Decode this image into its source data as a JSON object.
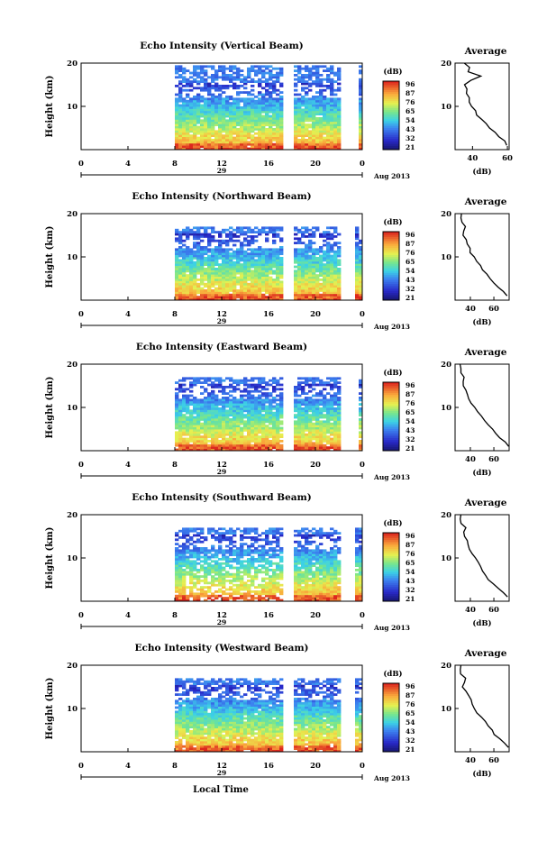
{
  "figure": {
    "xlabel": "Local Time",
    "date_label": "Aug 2013",
    "day_label": "29",
    "colorbar_unit": "(dB)",
    "colorbar_ticks": [
      "96",
      "87",
      "76",
      "65",
      "54",
      "43",
      "32",
      "21"
    ],
    "average_title": "Average",
    "average_xlabel": "(dB)",
    "height_label": "Height (km)"
  },
  "chart_data": [
    {
      "type": "heatmap",
      "title": "Echo Intensity (Vertical Beam)",
      "xlabel": "",
      "ylabel": "Height (km)",
      "xlim": [
        0,
        24
      ],
      "ylim": [
        0,
        20
      ],
      "x_ticks": [
        "0",
        "4",
        "8",
        "12",
        "16",
        "20",
        "0"
      ],
      "y_ticks": [
        "20",
        "10"
      ],
      "data_start_hour": 8,
      "gaps_hours": [
        17.6,
        18.0,
        22.4,
        23.0,
        23.5
      ],
      "colorbar_range_db": [
        21,
        96
      ],
      "average_profile": {
        "title": "Average",
        "xlabel": "(dB)",
        "x_ticks": [
          "40",
          "60"
        ],
        "xlim": [
          30,
          61
        ],
        "y_ticks": [
          "20",
          "10"
        ],
        "ylim": [
          0,
          20
        ],
        "heights_km": [
          1,
          2,
          3,
          4,
          5,
          6,
          7,
          8,
          9,
          10,
          11,
          12,
          13,
          14,
          15,
          16,
          17,
          18,
          19,
          20
        ],
        "values_db": [
          60,
          58,
          55,
          52,
          49,
          47,
          45,
          43,
          42,
          40,
          39,
          38,
          37,
          36,
          36,
          38,
          44,
          37,
          38,
          35
        ]
      }
    },
    {
      "type": "heatmap",
      "title": "Echo Intensity (Northward Beam)",
      "xlabel": "",
      "ylabel": "Height (km)",
      "xlim": [
        0,
        24
      ],
      "ylim": [
        0,
        20
      ],
      "x_ticks": [
        "0",
        "4",
        "8",
        "12",
        "16",
        "20",
        "0"
      ],
      "y_ticks": [
        "20",
        "10"
      ],
      "data_start_hour": 8,
      "gaps_hours": [
        17.6,
        18.0,
        22.4,
        23.0
      ],
      "colorbar_range_db": [
        21,
        96
      ],
      "average_profile": {
        "title": "Average",
        "xlabel": "(dB)",
        "x_ticks": [
          "40",
          "60"
        ],
        "xlim": [
          27,
          73
        ],
        "y_ticks": [
          "20",
          "10"
        ],
        "ylim": [
          0,
          20
        ],
        "heights_km": [
          1,
          2,
          3,
          4,
          5,
          6,
          7,
          8,
          9,
          10,
          11,
          12,
          13,
          14,
          15,
          16,
          17,
          18,
          19,
          20
        ],
        "values_db": [
          72,
          68,
          64,
          60,
          57,
          54,
          51,
          48,
          45,
          43,
          40,
          39,
          37,
          36,
          34,
          35,
          35,
          33,
          32,
          32
        ]
      }
    },
    {
      "type": "heatmap",
      "title": "Echo Intensity (Eastward Beam)",
      "xlabel": "",
      "ylabel": "Height (km)",
      "xlim": [
        0,
        24
      ],
      "ylim": [
        0,
        20
      ],
      "x_ticks": [
        "0",
        "4",
        "8",
        "12",
        "16",
        "20",
        "0"
      ],
      "y_ticks": [
        "20",
        "10"
      ],
      "data_start_hour": 8,
      "gaps_hours": [
        17.6,
        18.0,
        22.4,
        23.0,
        23.5
      ],
      "colorbar_range_db": [
        21,
        96
      ],
      "average_profile": {
        "title": "Average",
        "xlabel": "(dB)",
        "x_ticks": [
          "40",
          "60"
        ],
        "xlim": [
          27,
          73
        ],
        "y_ticks": [
          "20",
          "10"
        ],
        "ylim": [
          0,
          20
        ],
        "heights_km": [
          1,
          2,
          3,
          4,
          5,
          6,
          7,
          8,
          9,
          10,
          11,
          12,
          13,
          14,
          15,
          16,
          17,
          18,
          19,
          20
        ],
        "values_db": [
          72,
          69,
          65,
          61,
          58,
          55,
          52,
          49,
          46,
          43,
          41,
          39,
          38,
          36,
          34,
          34,
          35,
          32,
          31,
          31
        ]
      }
    },
    {
      "type": "heatmap",
      "title": "Echo Intensity (Southward Beam)",
      "xlabel": "",
      "ylabel": "Height (km)",
      "xlim": [
        0,
        24
      ],
      "ylim": [
        0,
        20
      ],
      "x_ticks": [
        "0",
        "4",
        "8",
        "12",
        "16",
        "20",
        "0"
      ],
      "y_ticks": [
        "20",
        "10"
      ],
      "data_start_hour": 8,
      "gaps_hours": [
        17.6,
        18.0,
        22.4,
        23.0
      ],
      "colorbar_range_db": [
        21,
        96
      ],
      "average_profile": {
        "title": "Average",
        "xlabel": "(dB)",
        "x_ticks": [
          "40",
          "60"
        ],
        "xlim": [
          27,
          73
        ],
        "y_ticks": [
          "20",
          "10"
        ],
        "ylim": [
          0,
          20
        ],
        "heights_km": [
          1,
          2,
          3,
          4,
          5,
          6,
          7,
          8,
          9,
          10,
          11,
          12,
          13,
          14,
          15,
          16,
          17,
          18,
          19,
          20
        ],
        "values_db": [
          71,
          68,
          64,
          60,
          56,
          53,
          50,
          48,
          46,
          44,
          42,
          40,
          38,
          37,
          36,
          35,
          36,
          33,
          32,
          31
        ]
      }
    },
    {
      "type": "heatmap",
      "title": "Echo Intensity (Westward Beam)",
      "xlabel": "Local Time",
      "ylabel": "Height (km)",
      "xlim": [
        0,
        24
      ],
      "ylim": [
        0,
        20
      ],
      "x_ticks": [
        "0",
        "4",
        "8",
        "12",
        "16",
        "20",
        "0"
      ],
      "y_ticks": [
        "20",
        "10"
      ],
      "data_start_hour": 8,
      "gaps_hours": [
        17.6,
        18.0,
        22.4,
        23.0
      ],
      "colorbar_range_db": [
        21,
        96
      ],
      "average_profile": {
        "title": "Average",
        "xlabel": "(dB)",
        "x_ticks": [
          "40",
          "60"
        ],
        "xlim": [
          27,
          73
        ],
        "y_ticks": [
          "20",
          "10"
        ],
        "ylim": [
          0,
          20
        ],
        "heights_km": [
          1,
          2,
          3,
          4,
          5,
          6,
          7,
          8,
          9,
          10,
          11,
          12,
          13,
          14,
          15,
          16,
          17,
          18,
          19,
          20
        ],
        "values_db": [
          72,
          69,
          65,
          61,
          58,
          55,
          52,
          49,
          46,
          44,
          42,
          40,
          38,
          36,
          34,
          34,
          35,
          32,
          31,
          31
        ]
      }
    }
  ]
}
